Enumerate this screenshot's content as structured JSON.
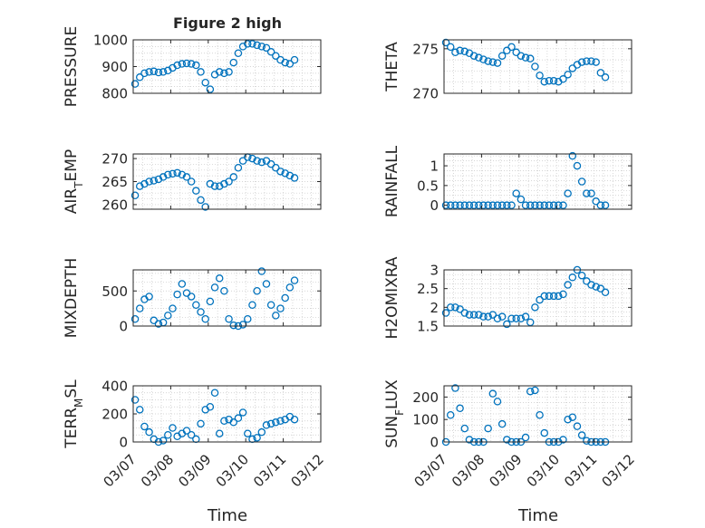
{
  "figure": {
    "title": "Figure 2 high",
    "marker_color": "#0072BD"
  },
  "chart_data": [
    {
      "type": "scatter",
      "ylabel": "PRESSURE",
      "ylim": [
        800,
        1000
      ],
      "yticks": [
        800,
        900,
        1000
      ],
      "xlim": [
        "03/07",
        "03/12"
      ],
      "grid": true,
      "series": [
        {
          "x": [
            "03/07 00:00",
            "03/07 03:00",
            "03/07 06:00",
            "03/07 09:00",
            "03/07 12:00",
            "03/07 15:00",
            "03/07 18:00",
            "03/07 21:00",
            "03/08 00:00",
            "03/08 03:00",
            "03/08 06:00",
            "03/08 09:00",
            "03/08 12:00",
            "03/08 15:00",
            "03/08 18:00",
            "03/08 21:00",
            "03/09 00:00",
            "03/09 03:00",
            "03/09 06:00",
            "03/09 09:00",
            "03/09 12:00",
            "03/09 15:00",
            "03/09 18:00",
            "03/09 21:00",
            "03/10 00:00",
            "03/10 03:00",
            "03/10 06:00",
            "03/10 09:00",
            "03/10 12:00",
            "03/10 15:00",
            "03/10 18:00",
            "03/10 21:00",
            "03/11 00:00",
            "03/11 03:00",
            "03/11 06:00"
          ],
          "y": [
            835,
            860,
            875,
            880,
            882,
            878,
            880,
            885,
            895,
            905,
            910,
            912,
            910,
            905,
            880,
            840,
            815,
            870,
            880,
            875,
            880,
            915,
            950,
            975,
            985,
            985,
            980,
            975,
            970,
            955,
            940,
            925,
            915,
            910,
            925
          ]
        }
      ]
    },
    {
      "type": "scatter",
      "ylabel": "THETA",
      "ylim": [
        270,
        276
      ],
      "yticks": [
        270,
        275
      ],
      "xlim": [
        "03/07",
        "03/12"
      ],
      "grid": true,
      "series": [
        {
          "x": [
            "03/07 00:00",
            "03/07 03:00",
            "03/07 06:00",
            "03/07 09:00",
            "03/07 12:00",
            "03/07 15:00",
            "03/07 18:00",
            "03/07 21:00",
            "03/08 00:00",
            "03/08 03:00",
            "03/08 06:00",
            "03/08 09:00",
            "03/08 12:00",
            "03/08 15:00",
            "03/08 18:00",
            "03/08 21:00",
            "03/09 00:00",
            "03/09 03:00",
            "03/09 06:00",
            "03/09 09:00",
            "03/09 12:00",
            "03/09 15:00",
            "03/09 18:00",
            "03/09 21:00",
            "03/10 00:00",
            "03/10 03:00",
            "03/10 06:00",
            "03/10 09:00",
            "03/10 12:00",
            "03/10 15:00",
            "03/10 18:00",
            "03/10 21:00",
            "03/11 00:00",
            "03/11 03:00",
            "03/11 06:00"
          ],
          "y": [
            275.7,
            275.2,
            274.6,
            274.8,
            274.7,
            274.5,
            274.2,
            274.0,
            273.8,
            273.6,
            273.5,
            273.4,
            274.2,
            274.8,
            275.2,
            274.6,
            274.2,
            274.0,
            273.9,
            273.0,
            272.0,
            271.3,
            271.4,
            271.4,
            271.3,
            271.6,
            272.1,
            272.8,
            273.2,
            273.5,
            273.6,
            273.6,
            273.5,
            272.3,
            271.8
          ]
        }
      ]
    },
    {
      "type": "scatter",
      "ylabel": "AIR_TEMP",
      "ylim": [
        259,
        271
      ],
      "yticks": [
        260,
        265,
        270
      ],
      "xlim": [
        "03/07",
        "03/12"
      ],
      "grid": true,
      "series": [
        {
          "x": [
            "03/07 00:00",
            "03/07 03:00",
            "03/07 06:00",
            "03/07 09:00",
            "03/07 12:00",
            "03/07 15:00",
            "03/07 18:00",
            "03/07 21:00",
            "03/08 00:00",
            "03/08 03:00",
            "03/08 06:00",
            "03/08 09:00",
            "03/08 12:00",
            "03/08 15:00",
            "03/08 18:00",
            "03/08 21:00",
            "03/09 00:00",
            "03/09 03:00",
            "03/09 06:00",
            "03/09 09:00",
            "03/09 12:00",
            "03/09 15:00",
            "03/09 18:00",
            "03/09 21:00",
            "03/10 00:00",
            "03/10 03:00",
            "03/10 06:00",
            "03/10 09:00",
            "03/10 12:00",
            "03/10 15:00",
            "03/10 18:00",
            "03/10 21:00",
            "03/11 00:00",
            "03/11 03:00",
            "03/11 06:00"
          ],
          "y": [
            262.0,
            264.0,
            264.5,
            265.0,
            265.2,
            265.5,
            266.0,
            266.5,
            266.7,
            266.9,
            266.5,
            266.0,
            265.0,
            263.0,
            261.0,
            259.5,
            264.5,
            264.0,
            264.0,
            264.5,
            265.0,
            266.0,
            268.0,
            269.5,
            270.3,
            270.0,
            269.5,
            269.2,
            269.5,
            268.8,
            268.0,
            267.2,
            266.8,
            266.3,
            265.8
          ]
        }
      ]
    },
    {
      "type": "scatter",
      "ylabel": "RAINFALL",
      "ylim": [
        -0.1,
        1.3
      ],
      "yticks": [
        0,
        0.5,
        1
      ],
      "xlim": [
        "03/07",
        "03/12"
      ],
      "grid": true,
      "series": [
        {
          "x": [
            "03/07 00:00",
            "03/07 03:00",
            "03/07 06:00",
            "03/07 09:00",
            "03/07 12:00",
            "03/07 15:00",
            "03/07 18:00",
            "03/07 21:00",
            "03/08 00:00",
            "03/08 03:00",
            "03/08 06:00",
            "03/08 09:00",
            "03/08 12:00",
            "03/08 15:00",
            "03/08 18:00",
            "03/08 21:00",
            "03/09 00:00",
            "03/09 03:00",
            "03/09 06:00",
            "03/09 09:00",
            "03/09 12:00",
            "03/09 15:00",
            "03/09 18:00",
            "03/09 21:00",
            "03/10 00:00",
            "03/10 03:00",
            "03/10 06:00",
            "03/10 09:00",
            "03/10 12:00",
            "03/10 15:00",
            "03/10 18:00",
            "03/10 21:00",
            "03/11 00:00",
            "03/11 03:00",
            "03/11 06:00"
          ],
          "y": [
            0,
            0,
            0,
            0,
            0,
            0,
            0,
            0,
            0,
            0,
            0,
            0,
            0,
            0,
            0,
            0.3,
            0.15,
            0,
            0,
            0,
            0,
            0,
            0,
            0,
            0,
            0,
            0.3,
            1.25,
            1.0,
            0.6,
            0.3,
            0.3,
            0.1,
            0,
            0
          ]
        }
      ]
    },
    {
      "type": "scatter",
      "ylabel": "MIXDEPTH",
      "ylim": [
        0,
        800
      ],
      "yticks": [
        0,
        500
      ],
      "xlim": [
        "03/07",
        "03/12"
      ],
      "grid": true,
      "series": [
        {
          "x": [
            "03/07 00:00",
            "03/07 03:00",
            "03/07 06:00",
            "03/07 09:00",
            "03/07 12:00",
            "03/07 15:00",
            "03/07 18:00",
            "03/07 21:00",
            "03/08 00:00",
            "03/08 03:00",
            "03/08 06:00",
            "03/08 09:00",
            "03/08 12:00",
            "03/08 15:00",
            "03/08 18:00",
            "03/08 21:00",
            "03/09 00:00",
            "03/09 03:00",
            "03/09 06:00",
            "03/09 09:00",
            "03/09 12:00",
            "03/09 15:00",
            "03/09 18:00",
            "03/09 21:00",
            "03/10 00:00",
            "03/10 03:00",
            "03/10 06:00",
            "03/10 09:00",
            "03/10 12:00",
            "03/10 15:00",
            "03/10 18:00",
            "03/10 21:00",
            "03/11 00:00",
            "03/11 03:00",
            "03/11 06:00"
          ],
          "y": [
            100,
            250,
            380,
            420,
            80,
            30,
            50,
            150,
            250,
            450,
            600,
            470,
            420,
            300,
            200,
            100,
            350,
            550,
            680,
            500,
            100,
            10,
            0,
            20,
            100,
            300,
            500,
            780,
            600,
            300,
            150,
            250,
            400,
            550,
            650
          ]
        }
      ]
    },
    {
      "type": "scatter",
      "ylabel": "H2OMIXRA",
      "ylim": [
        1.5,
        3
      ],
      "yticks": [
        1.5,
        2,
        2.5,
        3
      ],
      "xlim": [
        "03/07",
        "03/12"
      ],
      "grid": true,
      "series": [
        {
          "x": [
            "03/07 00:00",
            "03/07 03:00",
            "03/07 06:00",
            "03/07 09:00",
            "03/07 12:00",
            "03/07 15:00",
            "03/07 18:00",
            "03/07 21:00",
            "03/08 00:00",
            "03/08 03:00",
            "03/08 06:00",
            "03/08 09:00",
            "03/08 12:00",
            "03/08 15:00",
            "03/08 18:00",
            "03/08 21:00",
            "03/09 00:00",
            "03/09 03:00",
            "03/09 06:00",
            "03/09 09:00",
            "03/09 12:00",
            "03/09 15:00",
            "03/09 18:00",
            "03/09 21:00",
            "03/10 00:00",
            "03/10 03:00",
            "03/10 06:00",
            "03/10 09:00",
            "03/10 12:00",
            "03/10 15:00",
            "03/10 18:00",
            "03/10 21:00",
            "03/11 00:00",
            "03/11 03:00",
            "03/11 06:00"
          ],
          "y": [
            1.85,
            2.0,
            2.0,
            1.95,
            1.85,
            1.8,
            1.8,
            1.8,
            1.75,
            1.75,
            1.8,
            1.7,
            1.75,
            1.55,
            1.7,
            1.7,
            1.7,
            1.75,
            1.6,
            2.0,
            2.2,
            2.3,
            2.3,
            2.3,
            2.3,
            2.35,
            2.6,
            2.8,
            3.0,
            2.85,
            2.7,
            2.6,
            2.55,
            2.5,
            2.4
          ]
        }
      ]
    },
    {
      "type": "scatter",
      "ylabel": "TERR_MSL",
      "ylim": [
        0,
        400
      ],
      "yticks": [
        0,
        200,
        400
      ],
      "xlim": [
        "03/07",
        "03/12"
      ],
      "grid": true,
      "series": [
        {
          "x": [
            "03/07 00:00",
            "03/07 03:00",
            "03/07 06:00",
            "03/07 09:00",
            "03/07 12:00",
            "03/07 15:00",
            "03/07 18:00",
            "03/07 21:00",
            "03/08 00:00",
            "03/08 03:00",
            "03/08 06:00",
            "03/08 09:00",
            "03/08 12:00",
            "03/08 15:00",
            "03/08 18:00",
            "03/08 21:00",
            "03/09 00:00",
            "03/09 03:00",
            "03/09 06:00",
            "03/09 09:00",
            "03/09 12:00",
            "03/09 15:00",
            "03/09 18:00",
            "03/09 21:00",
            "03/10 00:00",
            "03/10 03:00",
            "03/10 06:00",
            "03/10 09:00",
            "03/10 12:00",
            "03/10 15:00",
            "03/10 18:00",
            "03/10 21:00",
            "03/11 00:00",
            "03/11 03:00",
            "03/11 06:00"
          ],
          "y": [
            300,
            230,
            110,
            70,
            20,
            0,
            10,
            50,
            100,
            40,
            60,
            80,
            50,
            20,
            130,
            230,
            250,
            350,
            60,
            150,
            160,
            140,
            170,
            210,
            60,
            20,
            30,
            70,
            120,
            130,
            140,
            150,
            160,
            180,
            160
          ]
        }
      ]
    },
    {
      "type": "scatter",
      "ylabel": "SUN_FLUX",
      "ylim": [
        0,
        250
      ],
      "yticks": [
        0,
        100,
        200
      ],
      "xlim": [
        "03/07",
        "03/12"
      ],
      "grid": true,
      "series": [
        {
          "x": [
            "03/07 00:00",
            "03/07 03:00",
            "03/07 06:00",
            "03/07 09:00",
            "03/07 12:00",
            "03/07 15:00",
            "03/07 18:00",
            "03/07 21:00",
            "03/08 00:00",
            "03/08 03:00",
            "03/08 06:00",
            "03/08 09:00",
            "03/08 12:00",
            "03/08 15:00",
            "03/08 18:00",
            "03/08 21:00",
            "03/09 00:00",
            "03/09 03:00",
            "03/09 06:00",
            "03/09 09:00",
            "03/09 12:00",
            "03/09 15:00",
            "03/09 18:00",
            "03/09 21:00",
            "03/10 00:00",
            "03/10 03:00",
            "03/10 06:00",
            "03/10 09:00",
            "03/10 12:00",
            "03/10 15:00",
            "03/10 18:00",
            "03/10 21:00",
            "03/11 00:00",
            "03/11 03:00",
            "03/11 06:00"
          ],
          "y": [
            0,
            120,
            240,
            150,
            60,
            10,
            0,
            0,
            0,
            60,
            215,
            180,
            80,
            10,
            0,
            0,
            0,
            20,
            225,
            230,
            120,
            40,
            0,
            0,
            0,
            10,
            100,
            110,
            70,
            30,
            5,
            0,
            0,
            0,
            0
          ]
        }
      ]
    }
  ],
  "axes": {
    "x_tick_labels": [
      "03/07",
      "03/08",
      "03/09",
      "03/10",
      "03/11",
      "03/12"
    ],
    "xlabel_left": "Time",
    "xlabel_right": "Time"
  }
}
